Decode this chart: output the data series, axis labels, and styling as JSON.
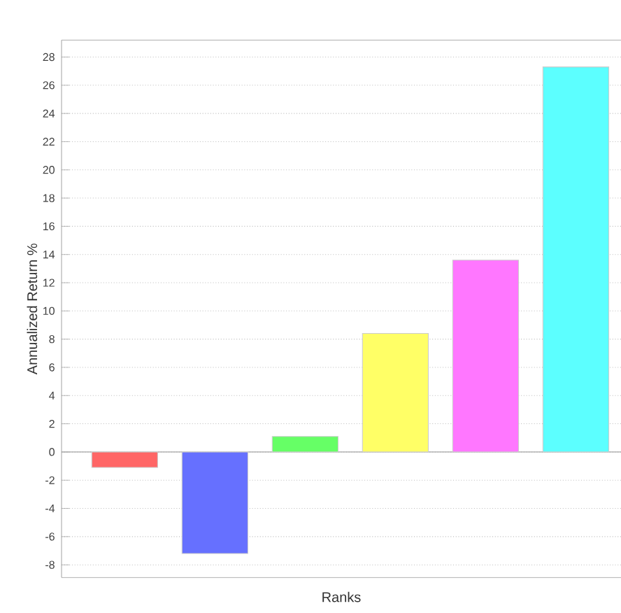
{
  "chart_data": {
    "type": "bar",
    "xlabel": "Ranks",
    "ylabel": "Annualized Return %",
    "categories": [
      null,
      null,
      null,
      null,
      null,
      null
    ],
    "values": [
      -1.1,
      -7.2,
      1.1,
      8.4,
      13.6,
      27.3
    ],
    "colors": [
      "#ff6666",
      "#6670ff",
      "#66ff66",
      "#ffff66",
      "#ff77ff",
      "#5cffff"
    ],
    "ylim": [
      -8.9,
      29.2
    ],
    "yticks": [
      -8,
      -6,
      -4,
      -2,
      0,
      2,
      4,
      6,
      8,
      10,
      12,
      14,
      16,
      18,
      20,
      22,
      24,
      26,
      28
    ],
    "grid": "y"
  }
}
